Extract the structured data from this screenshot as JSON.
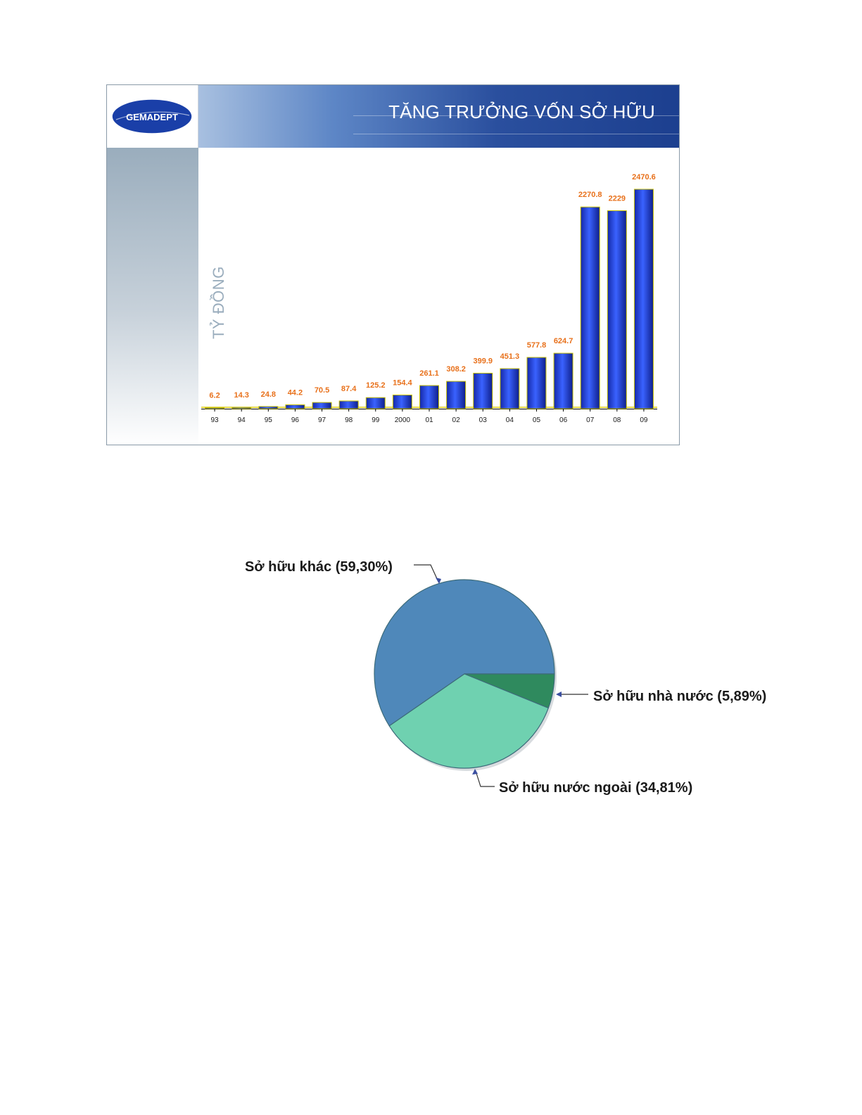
{
  "slide": {
    "logo_text": "GEMADEPT",
    "colors": {
      "header": "#1c3f8f",
      "bar": "#1f3fdc",
      "bar_label": "#e8701a",
      "logo": "#1a3fa8"
    }
  },
  "chart_data": [
    {
      "type": "bar",
      "title": "TĂNG TRƯỞNG VỐN SỞ HỮU",
      "ylabel": "TỶ ĐỒNG",
      "xlabel": "",
      "categories": [
        "93",
        "94",
        "95",
        "96",
        "97",
        "98",
        "99",
        "2000",
        "01",
        "02",
        "03",
        "04",
        "05",
        "06",
        "07",
        "08",
        "09"
      ],
      "values": [
        6.2,
        14.3,
        24.8,
        44.2,
        70.5,
        87.4,
        125.2,
        154.4,
        261.1,
        308.2,
        399.9,
        451.3,
        577.8,
        624.7,
        2270.8,
        2229,
        2470.6
      ],
      "value_labels": [
        "6.2",
        "14.3",
        "24.8",
        "44.2",
        "70.5",
        "87.4",
        "125.2",
        "154.4",
        "261.1",
        "308.2",
        "399.9",
        "451.3",
        "577.8",
        "624.7",
        "2270.8",
        "2229",
        "2470.6"
      ],
      "ylim": [
        0,
        2470.6
      ],
      "grid": false,
      "legend": "none"
    },
    {
      "type": "pie",
      "slices": [
        {
          "label": "Sở hữu khác (59,30%)",
          "value": 59.3,
          "color": "#4f88ba"
        },
        {
          "label": "Sở hữu nhà nước (5,89%)",
          "value": 5.89,
          "color": "#2f8a5e"
        },
        {
          "label": "Sở hữu nước ngoài (34,81%)",
          "value": 34.81,
          "color": "#6fd1b0"
        }
      ],
      "legend": "callouts"
    }
  ]
}
